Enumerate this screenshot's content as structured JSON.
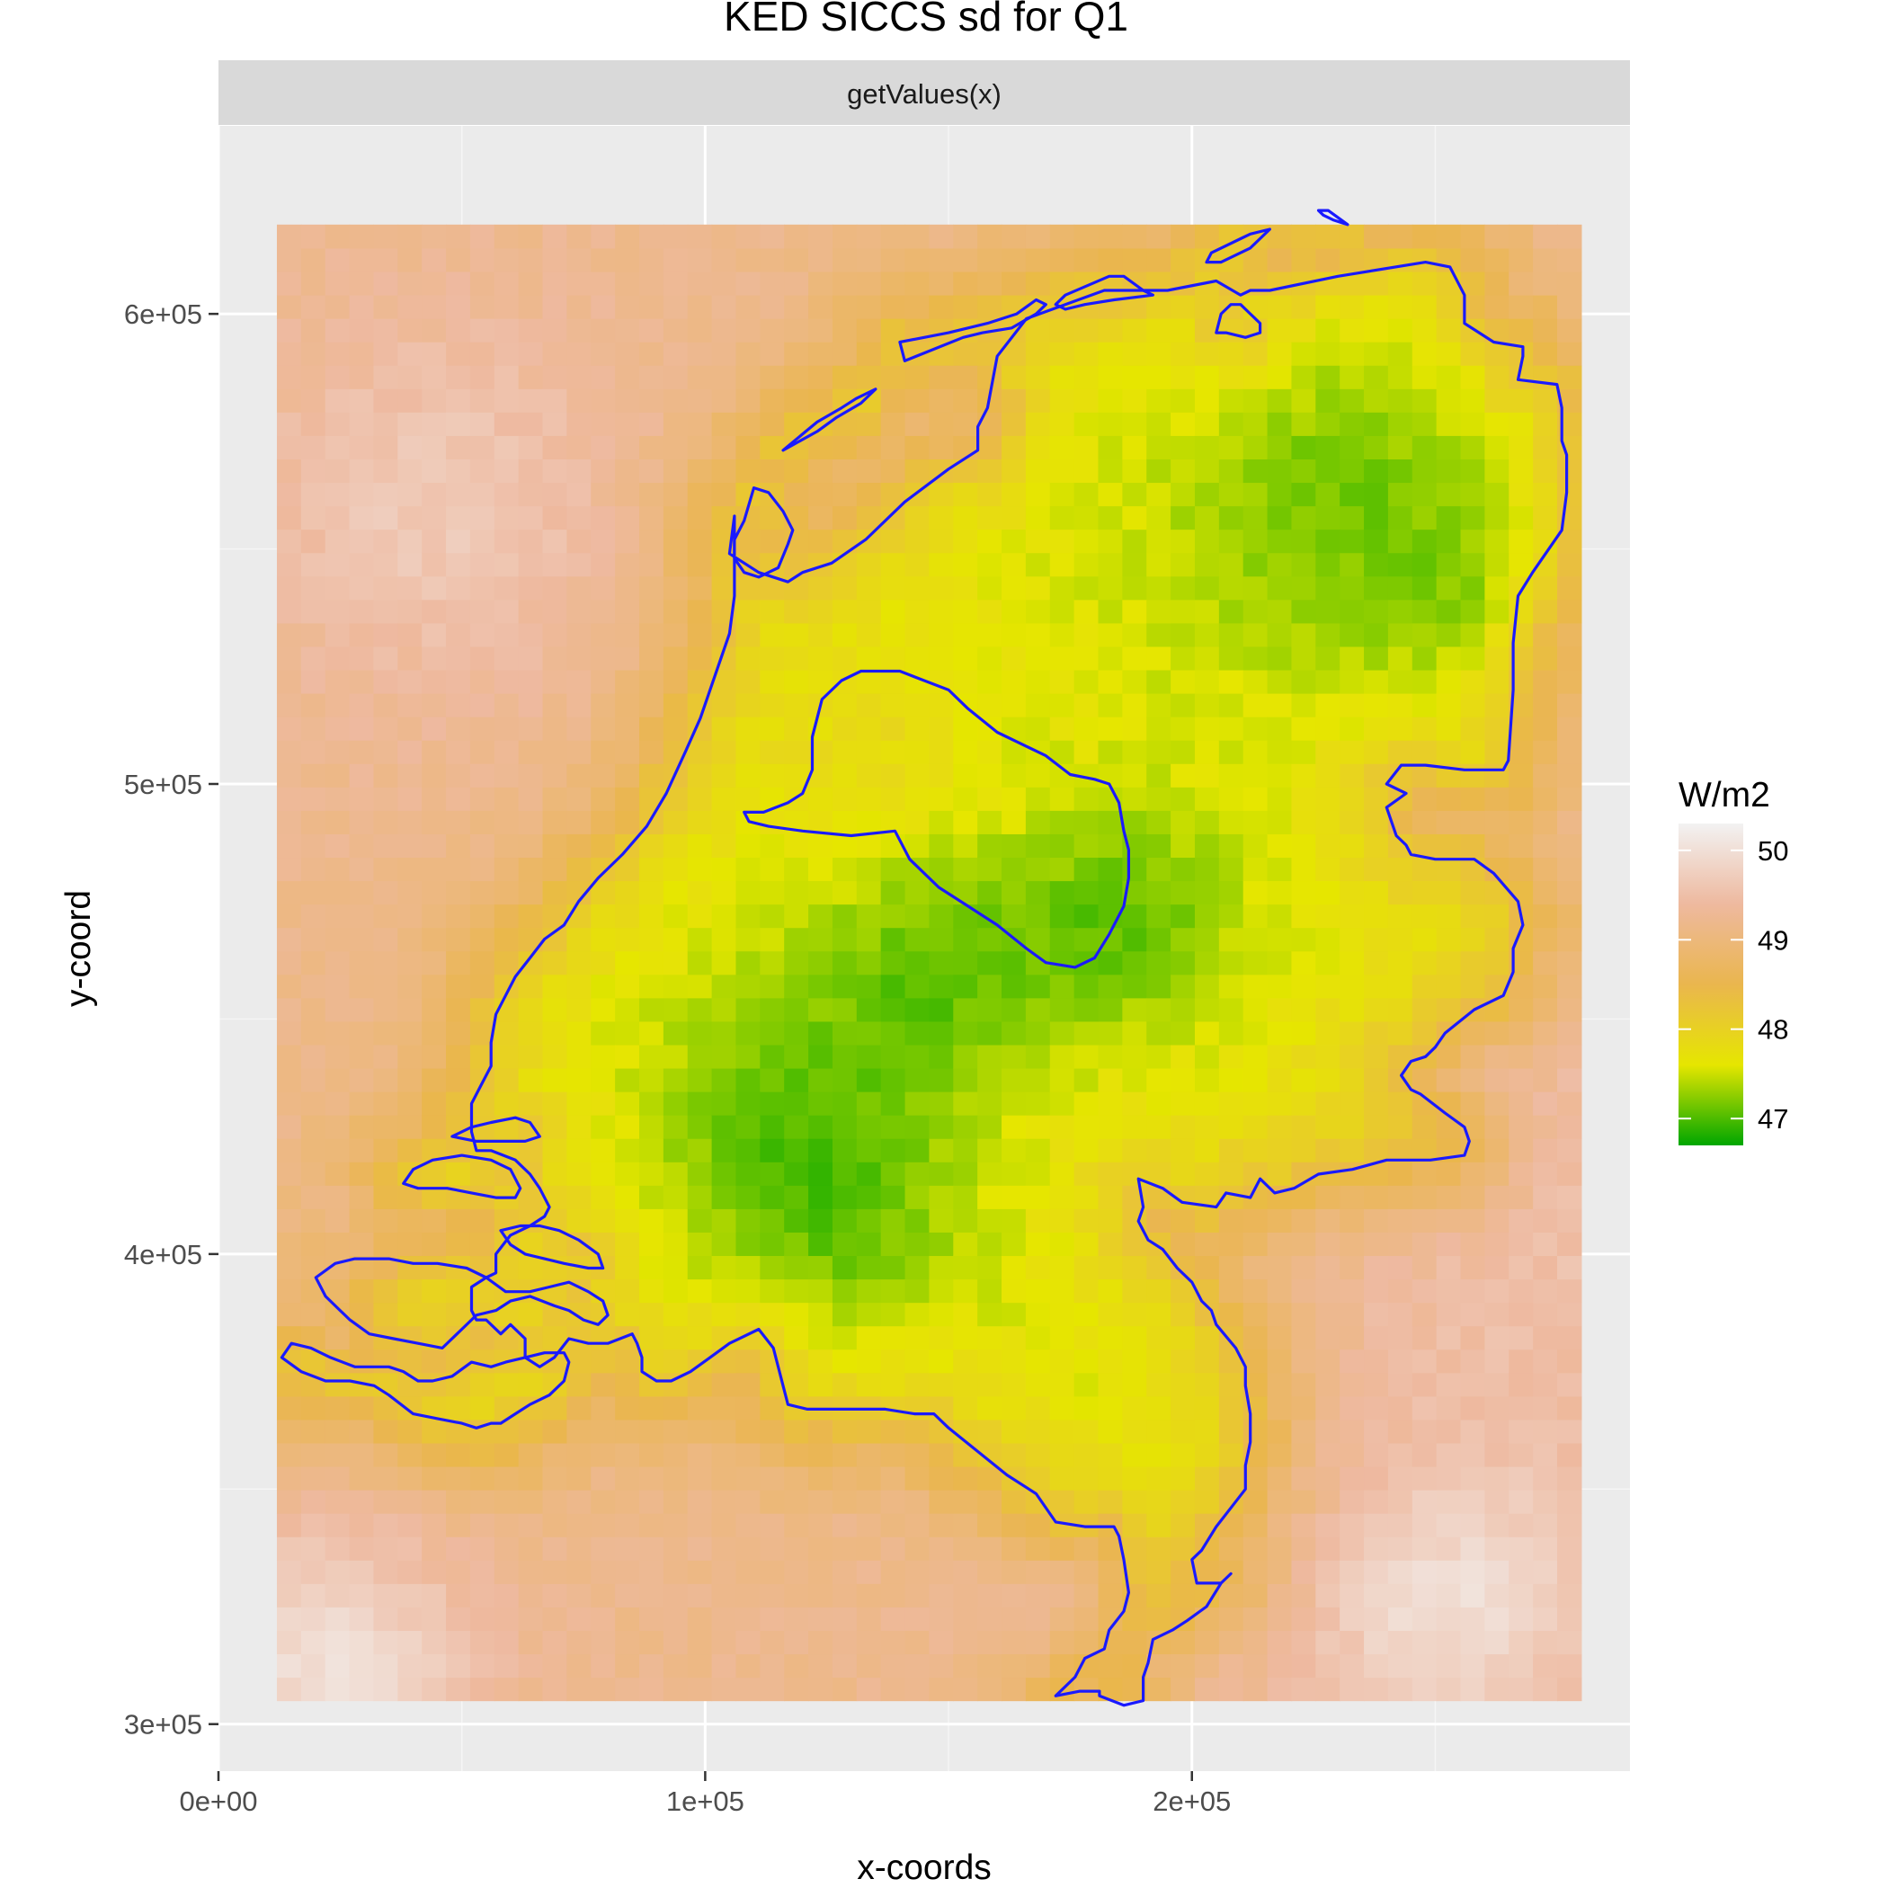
{
  "chart_data": {
    "type": "heatmap",
    "title": "KED SICCS sd for Q1",
    "facet_label": "getValues(x)",
    "xlabel": "x-coords",
    "ylabel": "y-coord",
    "xlim": [
      0,
      290000
    ],
    "ylim": [
      290000,
      640000
    ],
    "x_ticks": [
      {
        "value": 0,
        "label": "0e+00"
      },
      {
        "value": 100000,
        "label": "1e+05"
      },
      {
        "value": 200000,
        "label": "2e+05"
      }
    ],
    "y_ticks": [
      {
        "value": 300000,
        "label": "3e+05"
      },
      {
        "value": 400000,
        "label": "4e+05"
      },
      {
        "value": 500000,
        "label": "5e+05"
      },
      {
        "value": 600000,
        "label": "6e+05"
      }
    ],
    "raster_extent": {
      "xmin": 12000,
      "xmax": 280000,
      "ymin": 305000,
      "ymax": 619000
    },
    "grid_resolution": 5000,
    "legend": {
      "title": "W/m2",
      "position": "right",
      "min": 46.7,
      "max": 50.3,
      "ticks": [
        {
          "value": 50,
          "label": "50"
        },
        {
          "value": 49,
          "label": "49"
        },
        {
          "value": 48,
          "label": "48"
        },
        {
          "value": 47,
          "label": "47"
        }
      ],
      "color_stops": [
        "#00A600",
        "#E6E600",
        "#EAB64E",
        "#EEB99F",
        "#F2F2F2"
      ]
    },
    "value_summary": {
      "sea_value": 49.2,
      "land_value": 47.6,
      "minimum_area_value": 46.9,
      "maximum_corner_value": 50.1
    },
    "outline_color": "#1a1aff",
    "grid": true
  }
}
